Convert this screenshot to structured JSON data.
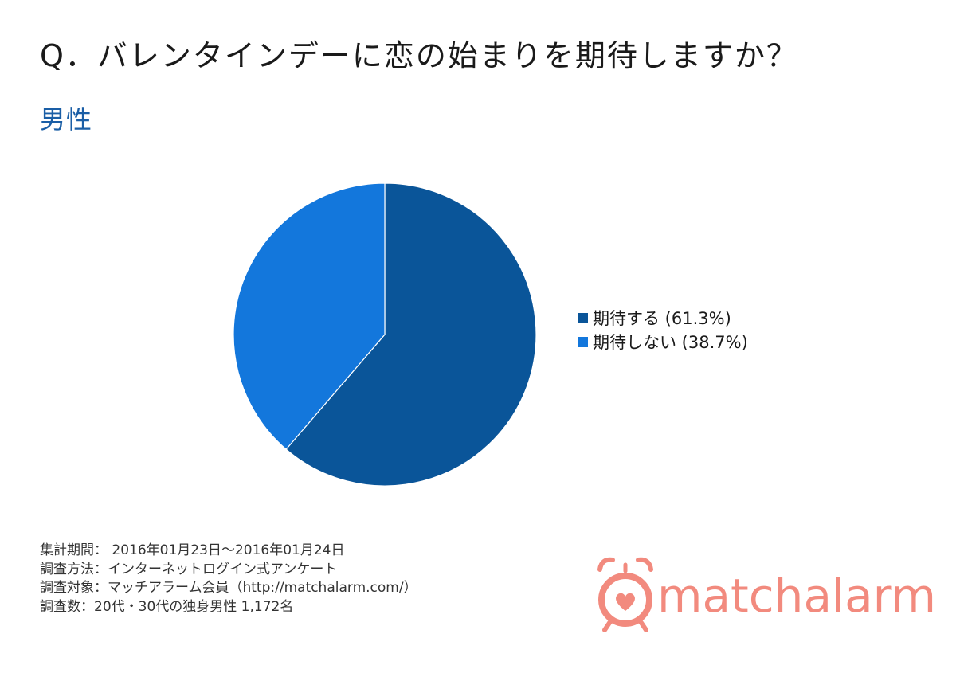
{
  "question": "Q．バレンタインデーに恋の始まりを期待しますか？",
  "segment": "男性",
  "colors": {
    "segment_text": "#1a5ea6",
    "expect": "#0a5599",
    "not_expect": "#1377dc",
    "brand": "#f28a7e"
  },
  "chart_data": {
    "type": "pie",
    "title": "",
    "slices": [
      {
        "label": "期待する (61.3%)",
        "value": 61.3,
        "color": "#0a5599"
      },
      {
        "label": "期待しない (38.7%)",
        "value": 38.7,
        "color": "#1377dc"
      }
    ],
    "start_angle": "12 o'clock",
    "direction": "clockwise",
    "legend_position": "right"
  },
  "footnotes": [
    "集計期間： 2016年01月23日～2016年01月24日",
    "調査方法：インターネットログイン式アンケート",
    "調査対象：マッチアラーム会員（http://matchalarm.com/）",
    "調査数：20代・30代の独身男性 1,172名"
  ],
  "brand": {
    "name_part1": "match",
    "name_part2": "alarm",
    "logo_icon": "alarm-clock-heart-icon"
  }
}
